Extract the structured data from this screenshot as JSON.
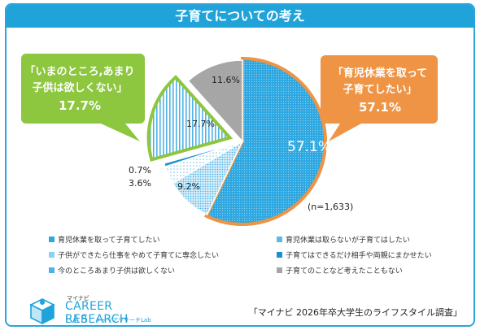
{
  "title": "子育てについての考え",
  "chart_data": {
    "type": "pie",
    "n_label": "(n=1,633)",
    "slices": [
      {
        "label": "育児休業を取って子育てしたい",
        "value": 57.1,
        "display": "57.1%",
        "color": "#2ea7e0",
        "pattern": "dots-dense"
      },
      {
        "label": "育児休業は取らないが子育てはしたい",
        "value": 9.2,
        "display": "9.2%",
        "color": "#5bbbe8",
        "pattern": "dots-light"
      },
      {
        "label": "子供ができたら仕事をやめて子育てに専念したい",
        "value": 3.6,
        "display": "3.6%",
        "color": "#8cd0f0",
        "pattern": "dots-sparse"
      },
      {
        "label": "子育てはできるだけ相手や両親にまかせたい",
        "value": 0.7,
        "display": "0.7%",
        "color": "#1a8fd0",
        "pattern": "solid"
      },
      {
        "label": "今のところあまり子供は欲しくない",
        "value": 17.7,
        "display": "17.7%",
        "color": "#4fb3e6",
        "pattern": "vlines"
      },
      {
        "label": "子育てのことなど考えたこともない",
        "value": 11.6,
        "display": "11.6%",
        "color": "#a6a6a6",
        "pattern": "solid"
      }
    ],
    "callouts": {
      "right": {
        "line1": "「育児休業を取って",
        "line2": "子育てしたい」",
        "value": "57.1%",
        "color": "#ee9444"
      },
      "left": {
        "line1": "「いまのところ,あまり",
        "line2": "子供は欲しくない」",
        "value": "17.7%",
        "color": "#8dc63f"
      }
    }
  },
  "legend": [
    {
      "label": "育児休業を取って子育てしたい",
      "color": "#2ea7e0"
    },
    {
      "label": "育児休業は取らないが子育てはしたい",
      "color": "#5bbbe8"
    },
    {
      "label": "子供ができたら仕事をやめて子育てに専念したい",
      "color": "#8cd0f0"
    },
    {
      "label": "子育てはできるだけ相手や両親にまかせたい",
      "color": "#1a8fd0"
    },
    {
      "label": "今のところあまり子供は欲しくない",
      "color": "#4fb3e6"
    },
    {
      "label": "子育てのことなど考えたこともない",
      "color": "#a6a6a6"
    }
  ],
  "logo": {
    "small": "マイナビ",
    "main": "CAREER RESEARCH",
    "lab": "LAB",
    "sub": "キャリアリサーチLab"
  },
  "source": "「マイナビ 2026年卒大学生のライフスタイル調査」"
}
